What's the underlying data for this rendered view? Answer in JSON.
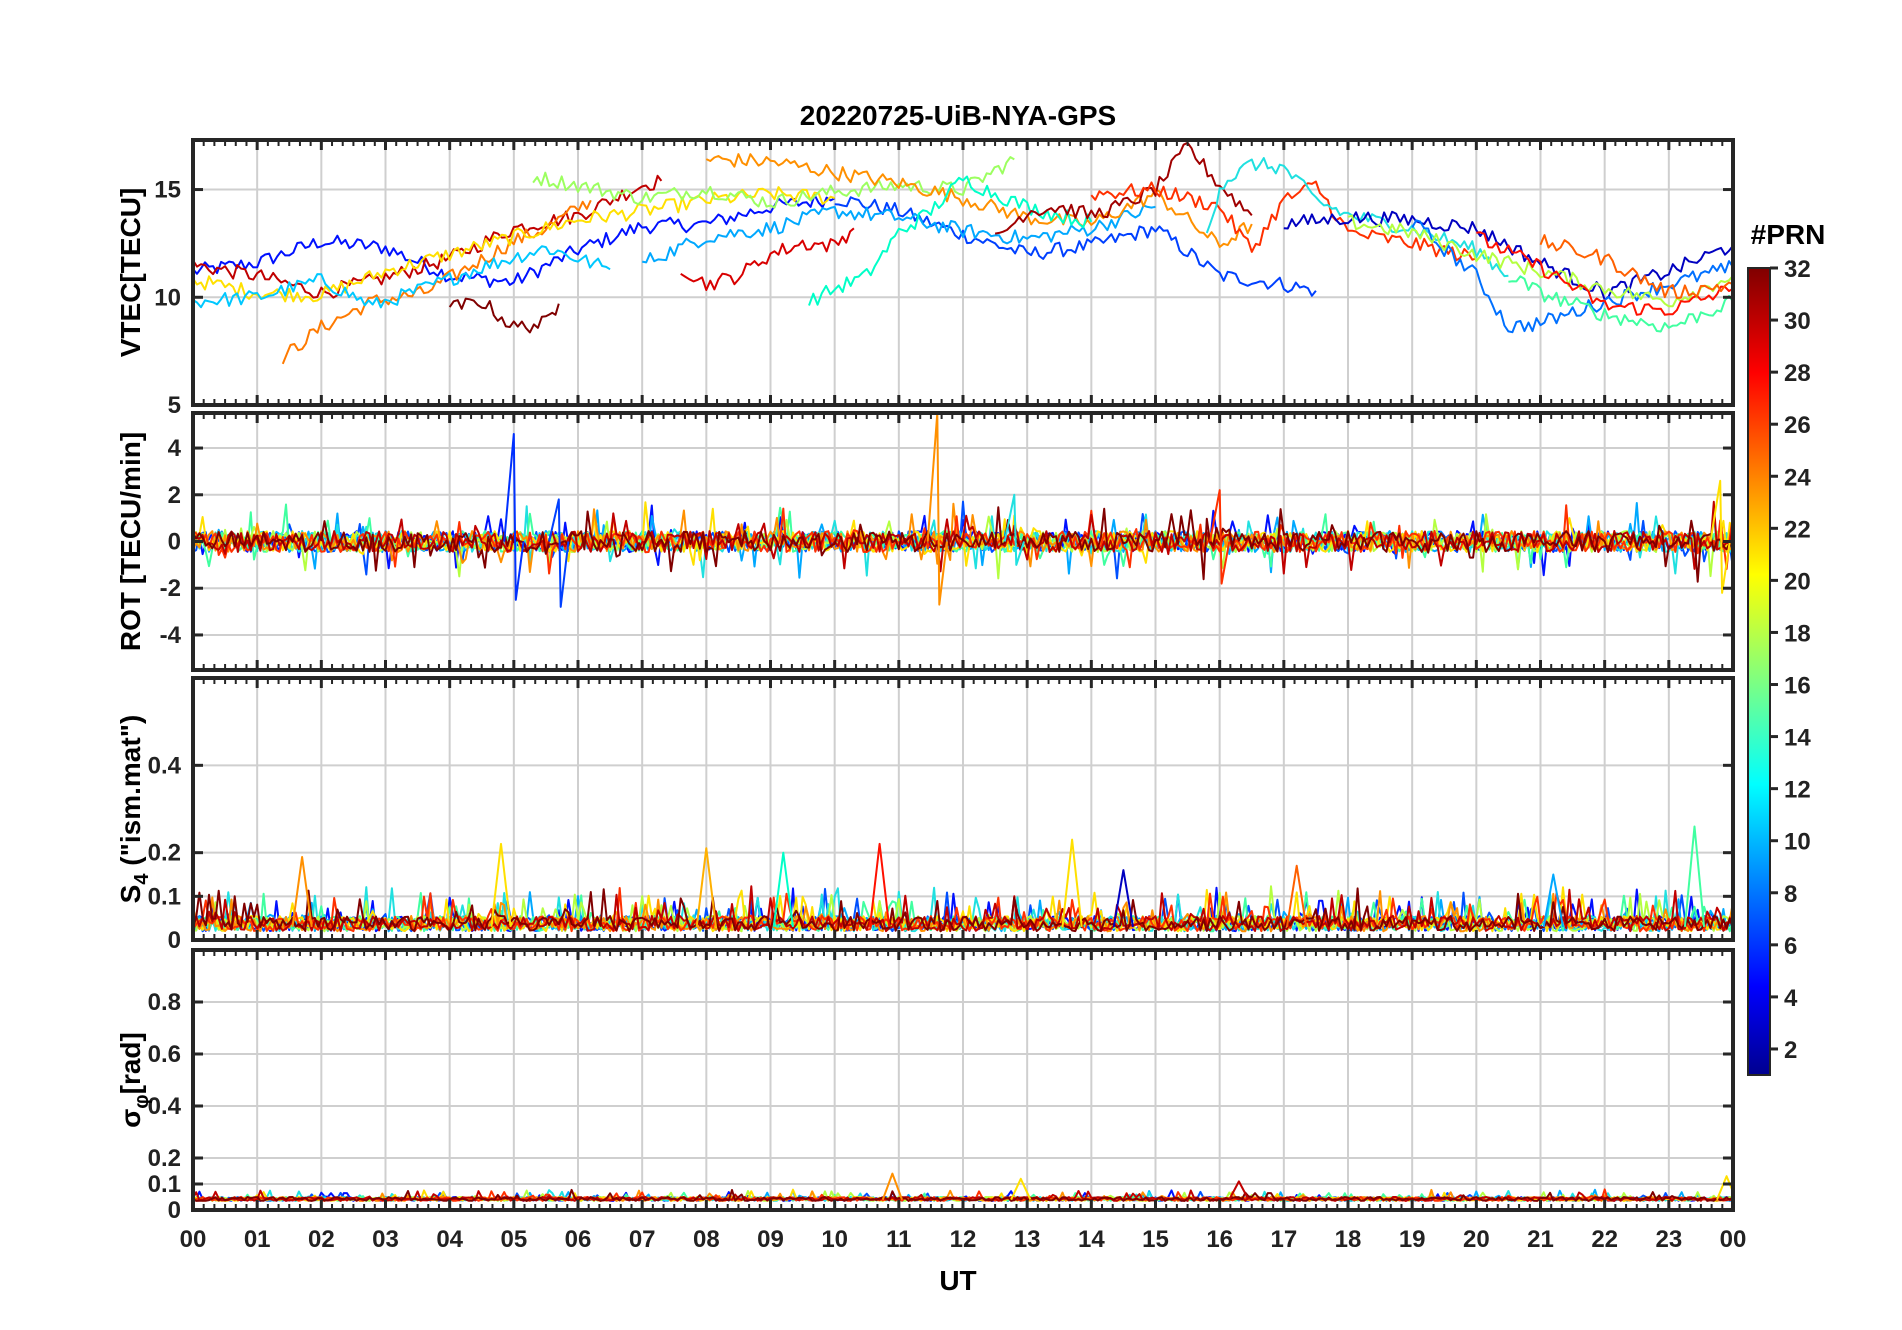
{
  "chart_data": {
    "type": "line",
    "title": "20220725-UiB-NYA-GPS",
    "xlabel": "UT",
    "x_ticks": [
      "00",
      "01",
      "02",
      "03",
      "04",
      "05",
      "06",
      "07",
      "08",
      "09",
      "10",
      "11",
      "12",
      "13",
      "14",
      "15",
      "16",
      "17",
      "18",
      "19",
      "20",
      "21",
      "22",
      "23",
      "00"
    ],
    "xlim": [
      0,
      24
    ],
    "grid": true,
    "colorbar": {
      "label": "#PRN",
      "range": [
        1,
        32
      ],
      "ticks": [
        "32",
        "30",
        "28",
        "26",
        "24",
        "22",
        "20",
        "18",
        "16",
        "14",
        "12",
        "10",
        "8",
        "6",
        "4",
        "2"
      ],
      "colormap": "jet",
      "placement": "right"
    },
    "panels": [
      {
        "id": "vtec",
        "ylabel": "VTEC[TECU]",
        "ylim": [
          5,
          17.3
        ],
        "yticks": [
          "5",
          "10",
          "15"
        ],
        "ytick_values": [
          5,
          10,
          15
        ],
        "series": [
          {
            "prn": 2,
            "color": "#0010ff",
            "x": [
              0,
              1,
              2,
              3,
              4,
              5,
              6,
              7,
              8,
              9,
              10
            ],
            "y": [
              11.2,
              11.6,
              12.6,
              12.3,
              11.0,
              10.7,
              12.2,
              13.3,
              13.4,
              14.2,
              14.6
            ]
          },
          {
            "prn": 5,
            "color": "#0040ff",
            "x": [
              10,
              11,
              12,
              13,
              14,
              15,
              16,
              17,
              17.5
            ],
            "y": [
              14.6,
              14.0,
              12.9,
              12.0,
              12.4,
              13.2,
              11.0,
              10.6,
              10.3
            ]
          },
          {
            "prn": 30,
            "color": "#c00000",
            "x": [
              0,
              1,
              2,
              3,
              4,
              5,
              6,
              7,
              7.3
            ],
            "y": [
              11.5,
              11.0,
              10.2,
              10.9,
              11.8,
              13.2,
              13.8,
              15.2,
              15.4
            ]
          },
          {
            "prn": 23,
            "color": "#ff7a00",
            "x": [
              1.4,
              2,
              2.8,
              3.6,
              4.3,
              5,
              5.5,
              6.2
            ],
            "y": [
              7.2,
              8.6,
              9.8,
              10.2,
              11.4,
              12.6,
              13.2,
              14.5
            ]
          },
          {
            "prn": 20,
            "color": "#ffe000",
            "x": [
              0,
              1,
              2,
              3,
              4,
              5,
              6,
              7,
              8,
              9,
              10
            ],
            "y": [
              10.8,
              10.2,
              10.1,
              11.2,
              12.0,
              12.8,
              13.6,
              14.0,
              14.5,
              14.8,
              14.6
            ]
          },
          {
            "prn": 12,
            "color": "#00c8ff",
            "x": [
              0,
              1,
              2,
              2.8,
              3.5,
              4.5,
              5.5,
              6.5
            ],
            "y": [
              9.8,
              10.0,
              10.8,
              9.6,
              10.3,
              11.4,
              12.3,
              11.3
            ]
          },
          {
            "prn": 18,
            "color": "#9cff60",
            "x": [
              5.3,
              6,
              7,
              8,
              9,
              10,
              11,
              12,
              12.8
            ],
            "y": [
              15.6,
              15.2,
              14.6,
              15.0,
              14.4,
              14.9,
              15.2,
              15.0,
              16.4
            ]
          },
          {
            "prn": 11,
            "color": "#00a8ff",
            "x": [
              7,
              8,
              9,
              10,
              11,
              12,
              13,
              14,
              15
            ],
            "y": [
              11.6,
              12.8,
              13.2,
              14.0,
              13.7,
              13.1,
              12.7,
              13.2,
              14.2
            ]
          },
          {
            "prn": 24,
            "color": "#ff9000",
            "x": [
              8,
              9,
              10,
              11,
              12,
              13,
              14,
              15,
              16,
              16.5
            ],
            "y": [
              16.4,
              16.3,
              15.8,
              15.3,
              14.6,
              13.7,
              13.4,
              14.8,
              12.4,
              13.4
            ]
          },
          {
            "prn": 32,
            "color": "#800000",
            "x": [
              4,
              4.5,
              5,
              5.5,
              5.7
            ],
            "y": [
              9.5,
              9.8,
              8.6,
              8.8,
              9.7
            ]
          },
          {
            "prn": 29,
            "color": "#d80000",
            "x": [
              7.6,
              8,
              8.5,
              9,
              9.5,
              10,
              10.3
            ],
            "y": [
              11.4,
              10.6,
              11.0,
              12.0,
              12.5,
              12.4,
              13.2
            ]
          },
          {
            "prn": 14,
            "color": "#00ffc8",
            "x": [
              9.6,
              10,
              10.5,
              11,
              11.5,
              12,
              12.5,
              13,
              13.5,
              14
            ],
            "y": [
              9.8,
              10.4,
              11.0,
              13.0,
              14.0,
              15.5,
              14.8,
              14.2,
              13.8,
              13.5
            ]
          },
          {
            "prn": 31,
            "color": "#a00000",
            "x": [
              12.5,
              13,
              13.5,
              14,
              14.5,
              15,
              15.5,
              16,
              16.5
            ],
            "y": [
              12.7,
              14.0,
              14.2,
              13.8,
              14.3,
              15.0,
              17.0,
              15.2,
              13.8
            ]
          },
          {
            "prn": 26,
            "color": "#ff3000",
            "x": [
              14,
              15,
              16,
              16.5,
              17,
              17.5,
              18,
              19,
              20
            ],
            "y": [
              14.8,
              15.0,
              14.2,
              12.2,
              14.5,
              15.2,
              13.0,
              12.5,
              11.8
            ]
          },
          {
            "prn": 13,
            "color": "#20e0e0",
            "x": [
              15.8,
              16,
              16.5,
              17,
              17.5,
              18,
              19,
              20,
              20.5
            ],
            "y": [
              12.8,
              15.2,
              16.2,
              16.0,
              14.5,
              13.8,
              13.2,
              12.2,
              11.0
            ]
          },
          {
            "prn": 3,
            "color": "#0000c0",
            "x": [
              17,
              18,
              19,
              20,
              21,
              22,
              23,
              24
            ],
            "y": [
              13.4,
              13.7,
              13.6,
              13.2,
              11.6,
              10.2,
              11.2,
              12.4
            ]
          },
          {
            "prn": 9,
            "color": "#0070ff",
            "x": [
              19,
              20,
              20.5,
              21,
              22,
              23,
              24
            ],
            "y": [
              13.5,
              11.0,
              8.6,
              8.8,
              9.8,
              10.6,
              11.4
            ]
          },
          {
            "prn": 17,
            "color": "#b4ff40",
            "x": [
              18,
              19,
              20,
              21,
              22,
              23,
              24
            ],
            "y": [
              13.5,
              13.0,
              12.0,
              11.2,
              10.4,
              9.8,
              11.0
            ]
          },
          {
            "prn": 27,
            "color": "#ff1000",
            "x": [
              20,
              21,
              22,
              23,
              24
            ],
            "y": [
              12.8,
              11.4,
              9.6,
              9.4,
              10.4
            ]
          },
          {
            "prn": 15,
            "color": "#40ffa0",
            "x": [
              20.5,
              21,
              22,
              23,
              24
            ],
            "y": [
              11.0,
              10.2,
              9.2,
              8.6,
              9.8
            ]
          },
          {
            "prn": 25,
            "color": "#ff6000",
            "x": [
              21,
              22,
              23,
              24
            ],
            "y": [
              12.6,
              11.8,
              10.2,
              10.6
            ]
          }
        ]
      },
      {
        "id": "rot",
        "ylabel": "ROT [TECU/min]",
        "ylim": [
          -5.5,
          5.5
        ],
        "yticks": [
          "-4",
          "-2",
          "0",
          "2",
          "4"
        ],
        "ytick_values": [
          -4,
          -2,
          0,
          2,
          4
        ],
        "series_note": "dense noise around 0 with spikes",
        "spikes": [
          {
            "prn": 5,
            "color": "#0030ff",
            "x": 5.0,
            "y": [
              4.6,
              -2.5
            ]
          },
          {
            "prn": 6,
            "color": "#0040ff",
            "x": 5.7,
            "y": [
              1.8,
              -2.8
            ]
          },
          {
            "prn": 24,
            "color": "#ff9000",
            "x": 11.6,
            "y": [
              5.5,
              -2.7
            ]
          },
          {
            "prn": 13,
            "color": "#20e0e0",
            "x": 12.8,
            "y": [
              2.0,
              -1.0
            ]
          },
          {
            "prn": 26,
            "color": "#ff3000",
            "x": 16.0,
            "y": [
              2.2,
              -1.8
            ]
          },
          {
            "prn": 20,
            "color": "#ffe000",
            "x": 23.8,
            "y": [
              2.6,
              -2.2
            ]
          }
        ]
      },
      {
        "id": "s4",
        "ylabel": "S4 (\"ism.mat\")",
        "ylabel_main": "S",
        "ylabel_sub": "4",
        "ylabel_rest": " (\"ism.mat\")",
        "ylim": [
          0,
          0.6
        ],
        "yticks": [
          "0",
          "0.1",
          "0.2",
          "0.4"
        ],
        "ytick_values": [
          0,
          0.1,
          0.2,
          0.4
        ],
        "spikes": [
          {
            "prn": 24,
            "color": "#ff9000",
            "x": 1.7,
            "y": 0.19
          },
          {
            "prn": 21,
            "color": "#ffe000",
            "x": 4.8,
            "y": 0.22
          },
          {
            "prn": 22,
            "color": "#ffb000",
            "x": 8.0,
            "y": 0.21
          },
          {
            "prn": 14,
            "color": "#00ffc8",
            "x": 9.2,
            "y": 0.2
          },
          {
            "prn": 27,
            "color": "#ff1000",
            "x": 10.7,
            "y": 0.22
          },
          {
            "prn": 20,
            "color": "#ffe000",
            "x": 13.7,
            "y": 0.23
          },
          {
            "prn": 3,
            "color": "#0000c0",
            "x": 14.5,
            "y": 0.16
          },
          {
            "prn": 25,
            "color": "#ff6000",
            "x": 17.2,
            "y": 0.17
          },
          {
            "prn": 11,
            "color": "#00a8ff",
            "x": 21.2,
            "y": 0.15
          },
          {
            "prn": 15,
            "color": "#40ffa0",
            "x": 23.4,
            "y": 0.26
          }
        ]
      },
      {
        "id": "sigma",
        "ylabel": "σφ[rad]",
        "ylabel_main": "σ",
        "ylabel_sub": "φ",
        "ylabel_rest": "[rad]",
        "ylim": [
          0,
          1.0
        ],
        "yticks": [
          "0",
          "0.1",
          "0.2",
          "0.4",
          "0.6",
          "0.8"
        ],
        "ytick_values": [
          0,
          0.1,
          0.2,
          0.4,
          0.6,
          0.8
        ],
        "spikes": [
          {
            "prn": 24,
            "color": "#ff9000",
            "x": 10.9,
            "y": 0.14
          },
          {
            "prn": 20,
            "color": "#ffe000",
            "x": 12.9,
            "y": 0.12
          },
          {
            "prn": 30,
            "color": "#c00000",
            "x": 16.3,
            "y": 0.11
          },
          {
            "prn": 20,
            "color": "#ffe000",
            "x": 23.9,
            "y": 0.13
          }
        ]
      }
    ]
  }
}
